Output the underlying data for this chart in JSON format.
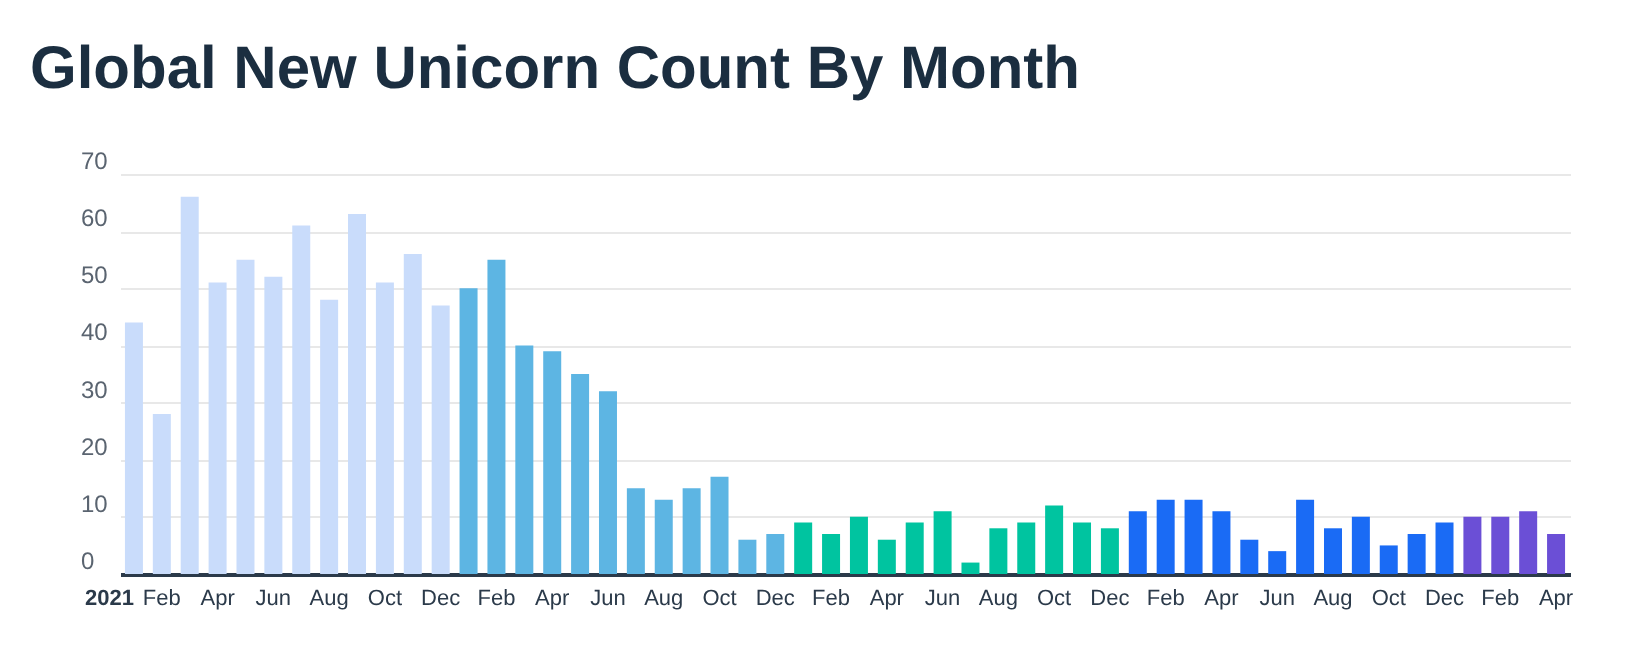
{
  "chart_data": {
    "type": "bar",
    "title": "Global New Unicorn Count By Month",
    "categories": [
      "2021",
      "Feb",
      null,
      "Apr",
      null,
      "Jun",
      null,
      "Aug",
      null,
      "Oct",
      null,
      "Dec",
      null,
      "Feb",
      null,
      "Apr",
      null,
      "Jun",
      null,
      "Aug",
      null,
      "Oct",
      null,
      "Dec",
      null,
      "Feb",
      null,
      "Apr",
      null,
      "Jun",
      null,
      "Aug",
      null,
      "Oct",
      null,
      "Dec",
      null,
      "Feb",
      null,
      "Apr",
      null,
      "Jun",
      null,
      "Aug",
      null,
      "Oct",
      null,
      "Dec",
      null,
      "Feb",
      null,
      "Apr"
    ],
    "values": [
      44,
      28,
      66,
      51,
      55,
      52,
      61,
      48,
      63,
      51,
      56,
      47,
      50,
      55,
      40,
      39,
      35,
      32,
      15,
      13,
      15,
      17,
      6,
      7,
      9,
      7,
      10,
      6,
      9,
      11,
      2,
      8,
      9,
      12,
      9,
      8,
      11,
      13,
      13,
      11,
      6,
      4,
      13,
      8,
      10,
      5,
      7,
      9,
      10,
      10,
      11,
      7
    ],
    "colors": [
      "#c9dcfb",
      "#c9dcfb",
      "#c9dcfb",
      "#c9dcfb",
      "#c9dcfb",
      "#c9dcfb",
      "#c9dcfb",
      "#c9dcfb",
      "#c9dcfb",
      "#c9dcfb",
      "#c9dcfb",
      "#c9dcfb",
      "#5db5e3",
      "#5db5e3",
      "#5db5e3",
      "#5db5e3",
      "#5db5e3",
      "#5db5e3",
      "#5db5e3",
      "#5db5e3",
      "#5db5e3",
      "#5db5e3",
      "#5db5e3",
      "#5db5e3",
      "#00c4a0",
      "#00c4a0",
      "#00c4a0",
      "#00c4a0",
      "#00c4a0",
      "#00c4a0",
      "#00c4a0",
      "#00c4a0",
      "#00c4a0",
      "#00c4a0",
      "#00c4a0",
      "#00c4a0",
      "#1a6bf5",
      "#1a6bf5",
      "#1a6bf5",
      "#1a6bf5",
      "#1a6bf5",
      "#1a6bf5",
      "#1a6bf5",
      "#1a6bf5",
      "#1a6bf5",
      "#1a6bf5",
      "#1a6bf5",
      "#1a6bf5",
      "#6b4fd6",
      "#6b4fd6",
      "#6b4fd6",
      "#6b4fd6"
    ],
    "ylim": [
      0,
      70
    ],
    "yticks": [
      0,
      10,
      20,
      30,
      40,
      50,
      60,
      70
    ],
    "grid": "y"
  }
}
